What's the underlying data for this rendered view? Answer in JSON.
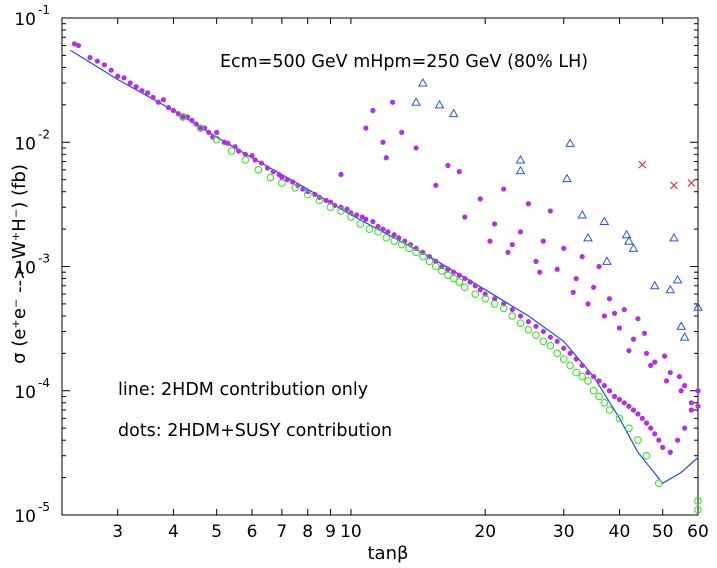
{
  "chart_data": {
    "type": "scatter",
    "title": "Ecm=500 GeV mHpm=250 GeV (80% LH)",
    "xlabel": "tanβ",
    "ylabel": "σ (e⁺e⁻ --> W⁺H⁻)   (fb)",
    "xscale": "log",
    "yscale": "log",
    "xlim": [
      2.25,
      60
    ],
    "ylim": [
      1e-05,
      0.1
    ],
    "x_ticks": [
      3,
      4,
      5,
      6,
      7,
      8,
      9,
      10,
      20,
      30,
      40,
      50,
      60
    ],
    "x_tick_labels": [
      "3",
      "4",
      "5",
      "6",
      "7",
      "8",
      "9",
      "10",
      "20",
      "30",
      "40",
      "50",
      "60"
    ],
    "y_ticks": [
      1e-05,
      0.0001,
      0.001,
      0.01,
      0.1
    ],
    "y_tick_labels": [
      {
        "base": "10",
        "exp": "-5"
      },
      {
        "base": "10",
        "exp": "-4"
      },
      {
        "base": "10",
        "exp": "-3"
      },
      {
        "base": "10",
        "exp": "-2"
      },
      {
        "base": "10",
        "exp": "-1"
      }
    ],
    "annotations": [
      "line: 2HDM contribution only",
      "dots: 2HDM+SUSY contribution"
    ],
    "series": [
      {
        "name": "2HDM contribution only",
        "style": "line",
        "color": "#1f4fe0",
        "x": [
          2.35,
          3,
          4,
          5,
          6,
          8,
          10,
          15,
          20,
          25,
          30,
          35,
          40,
          44,
          50,
          55,
          60
        ],
        "y": [
          0.055,
          0.032,
          0.018,
          0.011,
          0.0075,
          0.0042,
          0.0026,
          0.0012,
          0.00065,
          0.0004,
          0.00025,
          0.00013,
          6e-05,
          3.2e-05,
          1.8e-05,
          2.2e-05,
          2.9e-05
        ]
      },
      {
        "name": "2HDM+SUSY contribution (dots)",
        "style": "dot",
        "color": "#b22fe6",
        "x": [
          2.4,
          2.45,
          2.6,
          2.7,
          2.8,
          2.9,
          3.0,
          3.1,
          3.2,
          3.3,
          3.4,
          3.5,
          3.6,
          3.7,
          3.8,
          3.9,
          4.0,
          4.1,
          4.2,
          4.3,
          4.4,
          4.5,
          4.6,
          4.7,
          4.8,
          4.9,
          5.0,
          5.2,
          5.3,
          5.5,
          5.6,
          5.8,
          6.0,
          6.1,
          6.3,
          6.5,
          6.7,
          6.9,
          7.0,
          7.2,
          7.4,
          7.6,
          7.8,
          8.0,
          8.3,
          8.5,
          8.8,
          9.0,
          9.2,
          9.5,
          9.8,
          10.0,
          10.3,
          10.6,
          10.8,
          11.2,
          11.5,
          11.8,
          12.1,
          12.5,
          12.8,
          13.2,
          13.6,
          14.0,
          14.5,
          15.0,
          15.5,
          16.0,
          16.5,
          17.0,
          17.5,
          18.0,
          18.5,
          19.0,
          19.5,
          20.0,
          21.0,
          22.0,
          23.0,
          24.0,
          25.0,
          26.0,
          27.0,
          28.0,
          29.0,
          30.0,
          31.0,
          32.0,
          33.0,
          34.0,
          35.0,
          36.0,
          37.0,
          38.0,
          39.0,
          40.0,
          41.0,
          42.0,
          43.0,
          44.0,
          45.0,
          46.0,
          47.0,
          48.0,
          49.0,
          50.0,
          52.0,
          54.0,
          56.0,
          58.0,
          60.0,
          10.8,
          11.2,
          11.8,
          12.4,
          9.5,
          13.0,
          14.0,
          16.5,
          12.0,
          15.5,
          17.5,
          19.5,
          22.0,
          25.0,
          28.0,
          18.0,
          21.0,
          24.0,
          27.0,
          30.0,
          33.0,
          36.0,
          23.0,
          26.0,
          29.0,
          32.0,
          35.0,
          38.0,
          41.0,
          44.0,
          34.0,
          37.0,
          40.0,
          43.0,
          46.0,
          48.0,
          52.0,
          56.0,
          42.0,
          47.0,
          51.0,
          55.0,
          58.0,
          60.0,
          20.5,
          22.5,
          26.5,
          31.5,
          39.0,
          45.5,
          50.5,
          54.5
        ],
        "y": [
          0.062,
          0.06,
          0.048,
          0.045,
          0.042,
          0.038,
          0.034,
          0.033,
          0.03,
          0.028,
          0.026,
          0.025,
          0.023,
          0.021,
          0.022,
          0.019,
          0.018,
          0.017,
          0.016,
          0.016,
          0.015,
          0.014,
          0.013,
          0.013,
          0.012,
          0.011,
          0.012,
          0.01,
          0.0098,
          0.0092,
          0.0085,
          0.008,
          0.0078,
          0.0072,
          0.0068,
          0.0062,
          0.0058,
          0.0055,
          0.0052,
          0.005,
          0.0048,
          0.0045,
          0.0042,
          0.004,
          0.0038,
          0.0036,
          0.0034,
          0.0033,
          0.0031,
          0.003,
          0.0029,
          0.0027,
          0.0026,
          0.0025,
          0.0024,
          0.0023,
          0.0021,
          0.002,
          0.0019,
          0.0018,
          0.0017,
          0.0016,
          0.0015,
          0.0014,
          0.0013,
          0.0012,
          0.0011,
          0.001,
          0.00095,
          0.0009,
          0.00085,
          0.0008,
          0.00075,
          0.0007,
          0.00065,
          0.0006,
          0.00055,
          0.0005,
          0.00045,
          0.0004,
          0.00036,
          0.00033,
          0.0003,
          0.00027,
          0.00025,
          0.00022,
          0.0002,
          0.00018,
          0.00016,
          0.00014,
          0.00013,
          0.00012,
          0.00011,
          0.0001,
          9e-05,
          8.5e-05,
          8e-05,
          7.5e-05,
          7e-05,
          6.5e-05,
          6e-05,
          5.5e-05,
          5e-05,
          4.5e-05,
          4e-05,
          3.5e-05,
          3.2e-05,
          4e-05,
          5e-05,
          7e-05,
          0.0001,
          0.013,
          0.018,
          0.01,
          0.021,
          0.0055,
          0.012,
          0.009,
          0.0065,
          0.0075,
          0.0045,
          0.0058,
          0.0035,
          0.0042,
          0.0032,
          0.0028,
          0.0025,
          0.0022,
          0.0019,
          0.0016,
          0.0014,
          0.0012,
          0.001,
          0.0015,
          0.0011,
          0.00095,
          0.0008,
          0.00068,
          0.00055,
          0.00045,
          0.00038,
          0.0005,
          0.0004,
          0.00032,
          0.00026,
          0.0002,
          0.00017,
          0.00014,
          0.00011,
          0.00021,
          0.00016,
          0.00012,
          0.0001,
          8e-05,
          7.5e-05,
          0.0016,
          0.0013,
          0.0009,
          0.00062,
          0.00042,
          0.00029,
          0.00019,
          0.00013
        ]
      },
      {
        "name": "green circles",
        "style": "circle",
        "color": "#33dd1a",
        "x": [
          4.2,
          4.6,
          5.0,
          5.4,
          5.8,
          6.2,
          6.6,
          7.0,
          7.5,
          8.0,
          8.5,
          9.0,
          9.5,
          10.0,
          10.5,
          11.0,
          11.5,
          12.0,
          12.5,
          13.0,
          13.5,
          14.0,
          14.5,
          15.0,
          15.5,
          16.0,
          16.5,
          17.0,
          17.5,
          18.0,
          19.0,
          20.0,
          21.0,
          22.0,
          23.0,
          24.0,
          25.0,
          26.0,
          27.0,
          28.0,
          29.0,
          30.0,
          31.0,
          32.0,
          33.0,
          34.0,
          35.0,
          36.0,
          37.0,
          38.0,
          40.0,
          42.0,
          44.0,
          46.0,
          49.0,
          60.0,
          60.0
        ],
        "y": [
          0.016,
          0.013,
          0.0105,
          0.0085,
          0.0072,
          0.006,
          0.0052,
          0.0047,
          0.0043,
          0.0038,
          0.0034,
          0.003,
          0.0028,
          0.0025,
          0.0022,
          0.002,
          0.0019,
          0.0017,
          0.0016,
          0.0015,
          0.0014,
          0.0013,
          0.0012,
          0.0011,
          0.001,
          0.00092,
          0.00085,
          0.0008,
          0.00075,
          0.00068,
          0.0006,
          0.00055,
          0.0005,
          0.00046,
          0.0004,
          0.00035,
          0.00031,
          0.00028,
          0.00025,
          0.00023,
          0.0002,
          0.00018,
          0.00016,
          0.00014,
          0.00013,
          0.00012,
          0.0001,
          9e-05,
          8e-05,
          7e-05,
          6e-05,
          5e-05,
          4e-05,
          3e-05,
          1.8e-05,
          1.3e-05,
          1.1e-05
        ]
      },
      {
        "name": "blue triangles",
        "style": "triangle",
        "color": "#2a55d8",
        "x": [
          14.5,
          14.0,
          15.8,
          17.0,
          24.0,
          24.0,
          31.0,
          30.5,
          33.0,
          34.0,
          37.0,
          37.5,
          41.5,
          42.0,
          43.0,
          48.0,
          52.0,
          53.0,
          54.0,
          55.0,
          56.0,
          60.0
        ],
        "y": [
          0.03,
          0.021,
          0.02,
          0.017,
          0.0072,
          0.0059,
          0.0098,
          0.0051,
          0.0026,
          0.0017,
          0.0023,
          0.0011,
          0.0018,
          0.0016,
          0.0014,
          0.0007,
          0.00065,
          0.0017,
          0.00078,
          0.00033,
          0.00027,
          0.00047
        ]
      },
      {
        "name": "red crosses",
        "style": "cross",
        "color": "#e02a2a",
        "x": [
          45.0,
          53.0,
          58.0
        ],
        "y": [
          0.0066,
          0.0045,
          0.0047
        ]
      }
    ]
  }
}
